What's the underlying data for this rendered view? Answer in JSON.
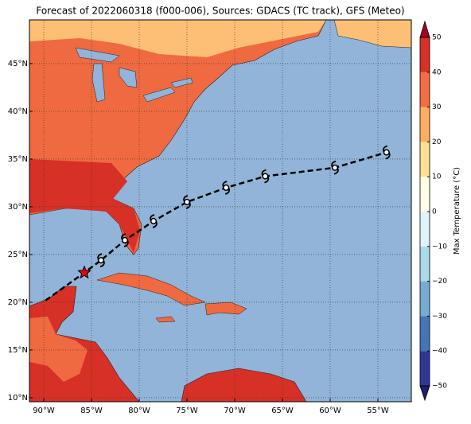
{
  "title": "Forecast of 2022060318 (f000-006), Sources: GDACS (TC track), GFS (Meteo)",
  "map": {
    "xlim": [
      -91.5,
      -51.5
    ],
    "ylim": [
      9.58,
      49.58
    ],
    "xticks": [
      {
        "value": -90,
        "label": "90°W"
      },
      {
        "value": -85,
        "label": "85°W"
      },
      {
        "value": -80,
        "label": "80°W"
      },
      {
        "value": -75,
        "label": "75°W"
      },
      {
        "value": -70,
        "label": "70°W"
      },
      {
        "value": -65,
        "label": "65°W"
      },
      {
        "value": -60,
        "label": "60°W"
      },
      {
        "value": -55,
        "label": "55°W"
      }
    ],
    "yticks": [
      {
        "value": 10,
        "label": "10°N"
      },
      {
        "value": 15,
        "label": "15°N"
      },
      {
        "value": 20,
        "label": "20°N"
      },
      {
        "value": 25,
        "label": "25°N"
      },
      {
        "value": 30,
        "label": "30°N"
      },
      {
        "value": 35,
        "label": "35°N"
      },
      {
        "value": 40,
        "label": "40°N"
      },
      {
        "value": 45,
        "label": "45°N"
      }
    ],
    "grid": true,
    "track": {
      "lon": [
        -89.8,
        -85.75,
        -84.0,
        -81.5,
        -78.5,
        -75.0,
        -70.9,
        -66.8,
        -59.5,
        -54.1
      ],
      "lat": [
        20.2,
        23.1,
        24.4,
        26.5,
        28.5,
        30.5,
        32.0,
        33.2,
        34.1,
        35.7
      ]
    }
  },
  "colorbar": {
    "label": "Max Temperature (°C)",
    "clim": [
      -50,
      50
    ],
    "ticks": [
      {
        "value": -50,
        "label": "−50"
      },
      {
        "value": -40,
        "label": "−40"
      },
      {
        "value": -30,
        "label": "−30"
      },
      {
        "value": -20,
        "label": "−20"
      },
      {
        "value": -10,
        "label": "−10"
      },
      0,
      10,
      20,
      30,
      40,
      50
    ],
    "colors": [
      "#313695",
      "#4575b4",
      "#74add1",
      "#abd9e9",
      "#e0f3f8",
      "#fefee6",
      "#fee090",
      "#fdae61",
      "#f46d43",
      "#d73027"
    ],
    "under": "#1c1f6e",
    "over": "#a50026"
  }
}
